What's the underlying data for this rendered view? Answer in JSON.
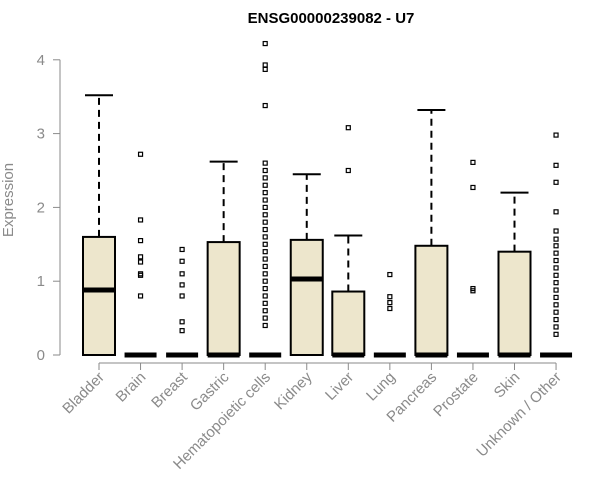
{
  "chart_data": {
    "type": "box",
    "title": "ENSG00000239082 - U7",
    "xlabel": "",
    "ylabel": "Expression",
    "ylim": [
      0,
      4.25
    ],
    "yticks": [
      0,
      1,
      2,
      3,
      4
    ],
    "box_color": "#ede6cc",
    "categories": [
      "Bladder",
      "Brain",
      "Breast",
      "Gastric",
      "Hematopoietic cells",
      "Kidney",
      "Liver",
      "Lung",
      "Pancreas",
      "Prostate",
      "Skin",
      "Unknown / Other"
    ],
    "boxes": [
      {
        "name": "Bladder",
        "min": 0,
        "q1": 0,
        "median": 0.88,
        "q3": 1.6,
        "max": 3.52,
        "outliers": []
      },
      {
        "name": "Brain",
        "min": 0,
        "q1": 0,
        "median": 0,
        "q3": 0,
        "max": 0,
        "outliers": [
          0.8,
          1.08,
          1.1,
          1.26,
          1.33,
          1.55,
          1.83,
          2.72
        ]
      },
      {
        "name": "Breast",
        "min": 0,
        "q1": 0,
        "median": 0,
        "q3": 0,
        "max": 0,
        "outliers": [
          0.33,
          0.45,
          0.8,
          0.95,
          1.1,
          1.27,
          1.43
        ]
      },
      {
        "name": "Gastric",
        "min": 0,
        "q1": 0,
        "median": 0,
        "q3": 1.53,
        "max": 2.62,
        "outliers": []
      },
      {
        "name": "Hematopoietic cells",
        "min": 0,
        "q1": 0,
        "median": 0,
        "q3": 0,
        "max": 0,
        "outliers": [
          0.4,
          0.5,
          0.6,
          0.7,
          0.8,
          0.9,
          1.0,
          1.1,
          1.2,
          1.3,
          1.4,
          1.5,
          1.6,
          1.7,
          1.8,
          1.9,
          2.0,
          2.1,
          2.2,
          2.3,
          2.4,
          2.5,
          2.6,
          3.38,
          3.87,
          3.93,
          4.22
        ]
      },
      {
        "name": "Kidney",
        "min": 0,
        "q1": 0,
        "median": 1.03,
        "q3": 1.56,
        "max": 2.45,
        "outliers": []
      },
      {
        "name": "Liver",
        "min": 0,
        "q1": 0,
        "median": 0,
        "q3": 0.86,
        "max": 1.62,
        "outliers": [
          2.5,
          3.08
        ]
      },
      {
        "name": "Lung",
        "min": 0,
        "q1": 0,
        "median": 0,
        "q3": 0,
        "max": 0,
        "outliers": [
          0.63,
          0.71,
          0.79,
          1.09
        ]
      },
      {
        "name": "Pancreas",
        "min": 0,
        "q1": 0,
        "median": 0,
        "q3": 1.48,
        "max": 3.32,
        "outliers": []
      },
      {
        "name": "Prostate",
        "min": 0,
        "q1": 0,
        "median": 0,
        "q3": 0,
        "max": 0,
        "outliers": [
          0.87,
          0.9,
          2.27,
          2.61
        ]
      },
      {
        "name": "Skin",
        "min": 0,
        "q1": 0,
        "median": 0,
        "q3": 1.4,
        "max": 2.2,
        "outliers": []
      },
      {
        "name": "Unknown / Other",
        "min": 0,
        "q1": 0,
        "median": 0,
        "q3": 0,
        "max": 0,
        "outliers": [
          0.28,
          0.38,
          0.48,
          0.58,
          0.68,
          0.78,
          0.88,
          0.98,
          1.08,
          1.18,
          1.28,
          1.38,
          1.48,
          1.57,
          1.68,
          1.94,
          2.34,
          2.57,
          2.98
        ]
      }
    ]
  }
}
